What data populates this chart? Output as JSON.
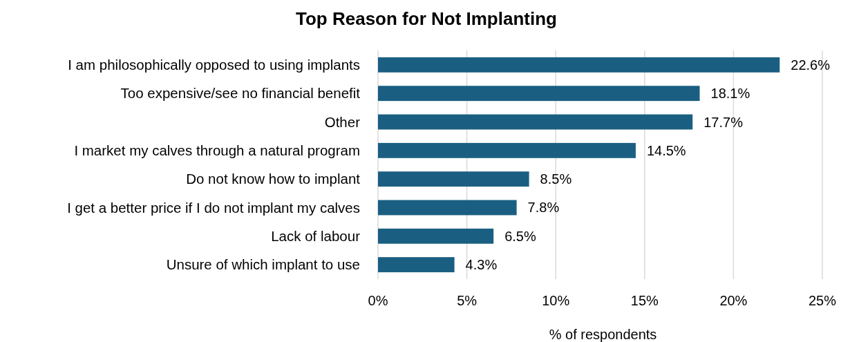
{
  "chart_data": {
    "type": "bar",
    "orientation": "horizontal",
    "title": "Top Reason for Not Implanting",
    "xlabel": "% of respondents",
    "categories": [
      "I am philosophically opposed to using implants",
      "Too expensive/see no financial benefit",
      "Other",
      "I market my calves through a natural program",
      "Do not know how to implant",
      "I get a better price if I do not implant my calves",
      "Lack of labour",
      "Unsure of which implant to use"
    ],
    "values": [
      22.6,
      18.1,
      17.7,
      14.5,
      8.5,
      7.8,
      6.5,
      4.3
    ],
    "value_labels": [
      "22.6%",
      "18.1%",
      "17.7%",
      "14.5%",
      "8.5%",
      "7.8%",
      "6.5%",
      "4.3%"
    ],
    "color": "#1a5f82",
    "xlim": [
      0,
      25
    ],
    "xticks": [
      {
        "value": 0,
        "label": "0%"
      },
      {
        "value": 5,
        "label": "5%"
      },
      {
        "value": 10,
        "label": "10%"
      },
      {
        "value": 15,
        "label": "15%"
      },
      {
        "value": 20,
        "label": "20%"
      },
      {
        "value": 25,
        "label": "25%"
      }
    ],
    "grid": "x"
  }
}
